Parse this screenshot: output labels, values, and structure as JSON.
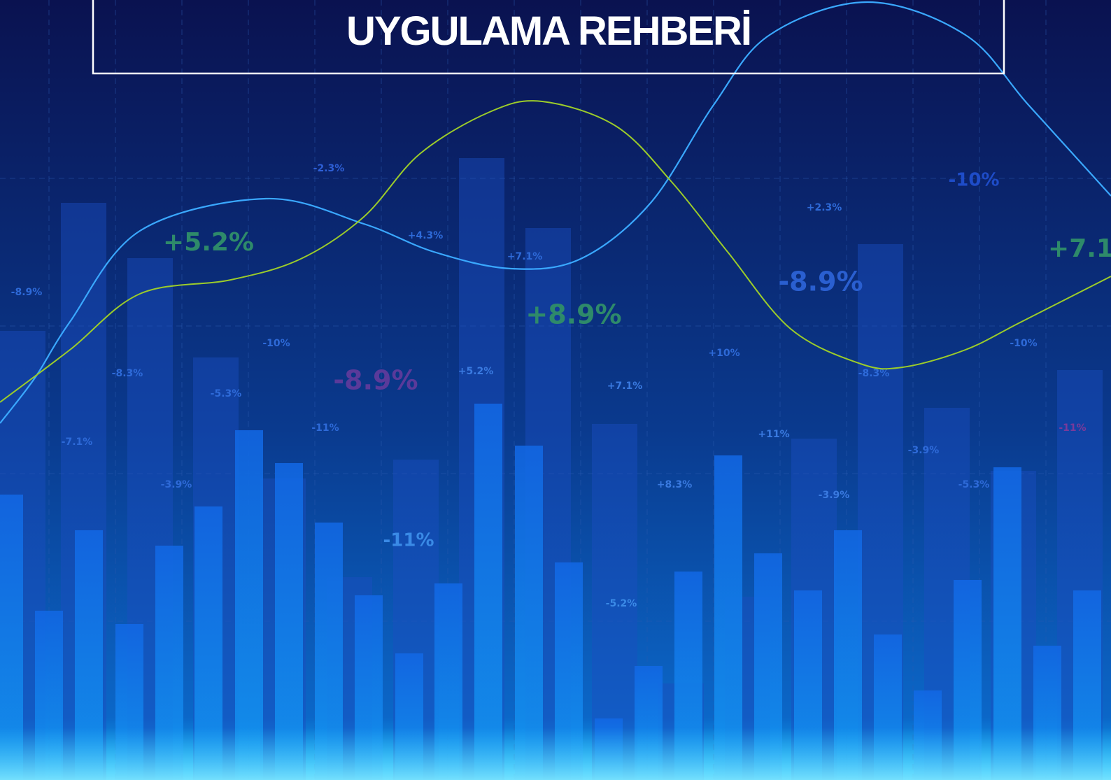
{
  "header": {
    "title": "UYGULAMA REHBERİ"
  },
  "labels": [
    "-2.3%",
    "+5.2%",
    "+4.3%",
    "+7.1%",
    "-10%",
    "+2.3%",
    "+7.1",
    "-8.9%",
    "-8.9%",
    "+8.9%",
    "-10%",
    "+10%",
    "-10%",
    "-8.3%",
    "-8.9%",
    "+5.2%",
    "-8.3%",
    "-5.3%",
    "+7.1%",
    "-11%",
    "+11%",
    "-11%",
    "-7.1%",
    "-3.9%",
    "-3.9%",
    "+8.3%",
    "-5.3%",
    "-3.9%",
    "-11%",
    "-5.2%"
  ]
}
